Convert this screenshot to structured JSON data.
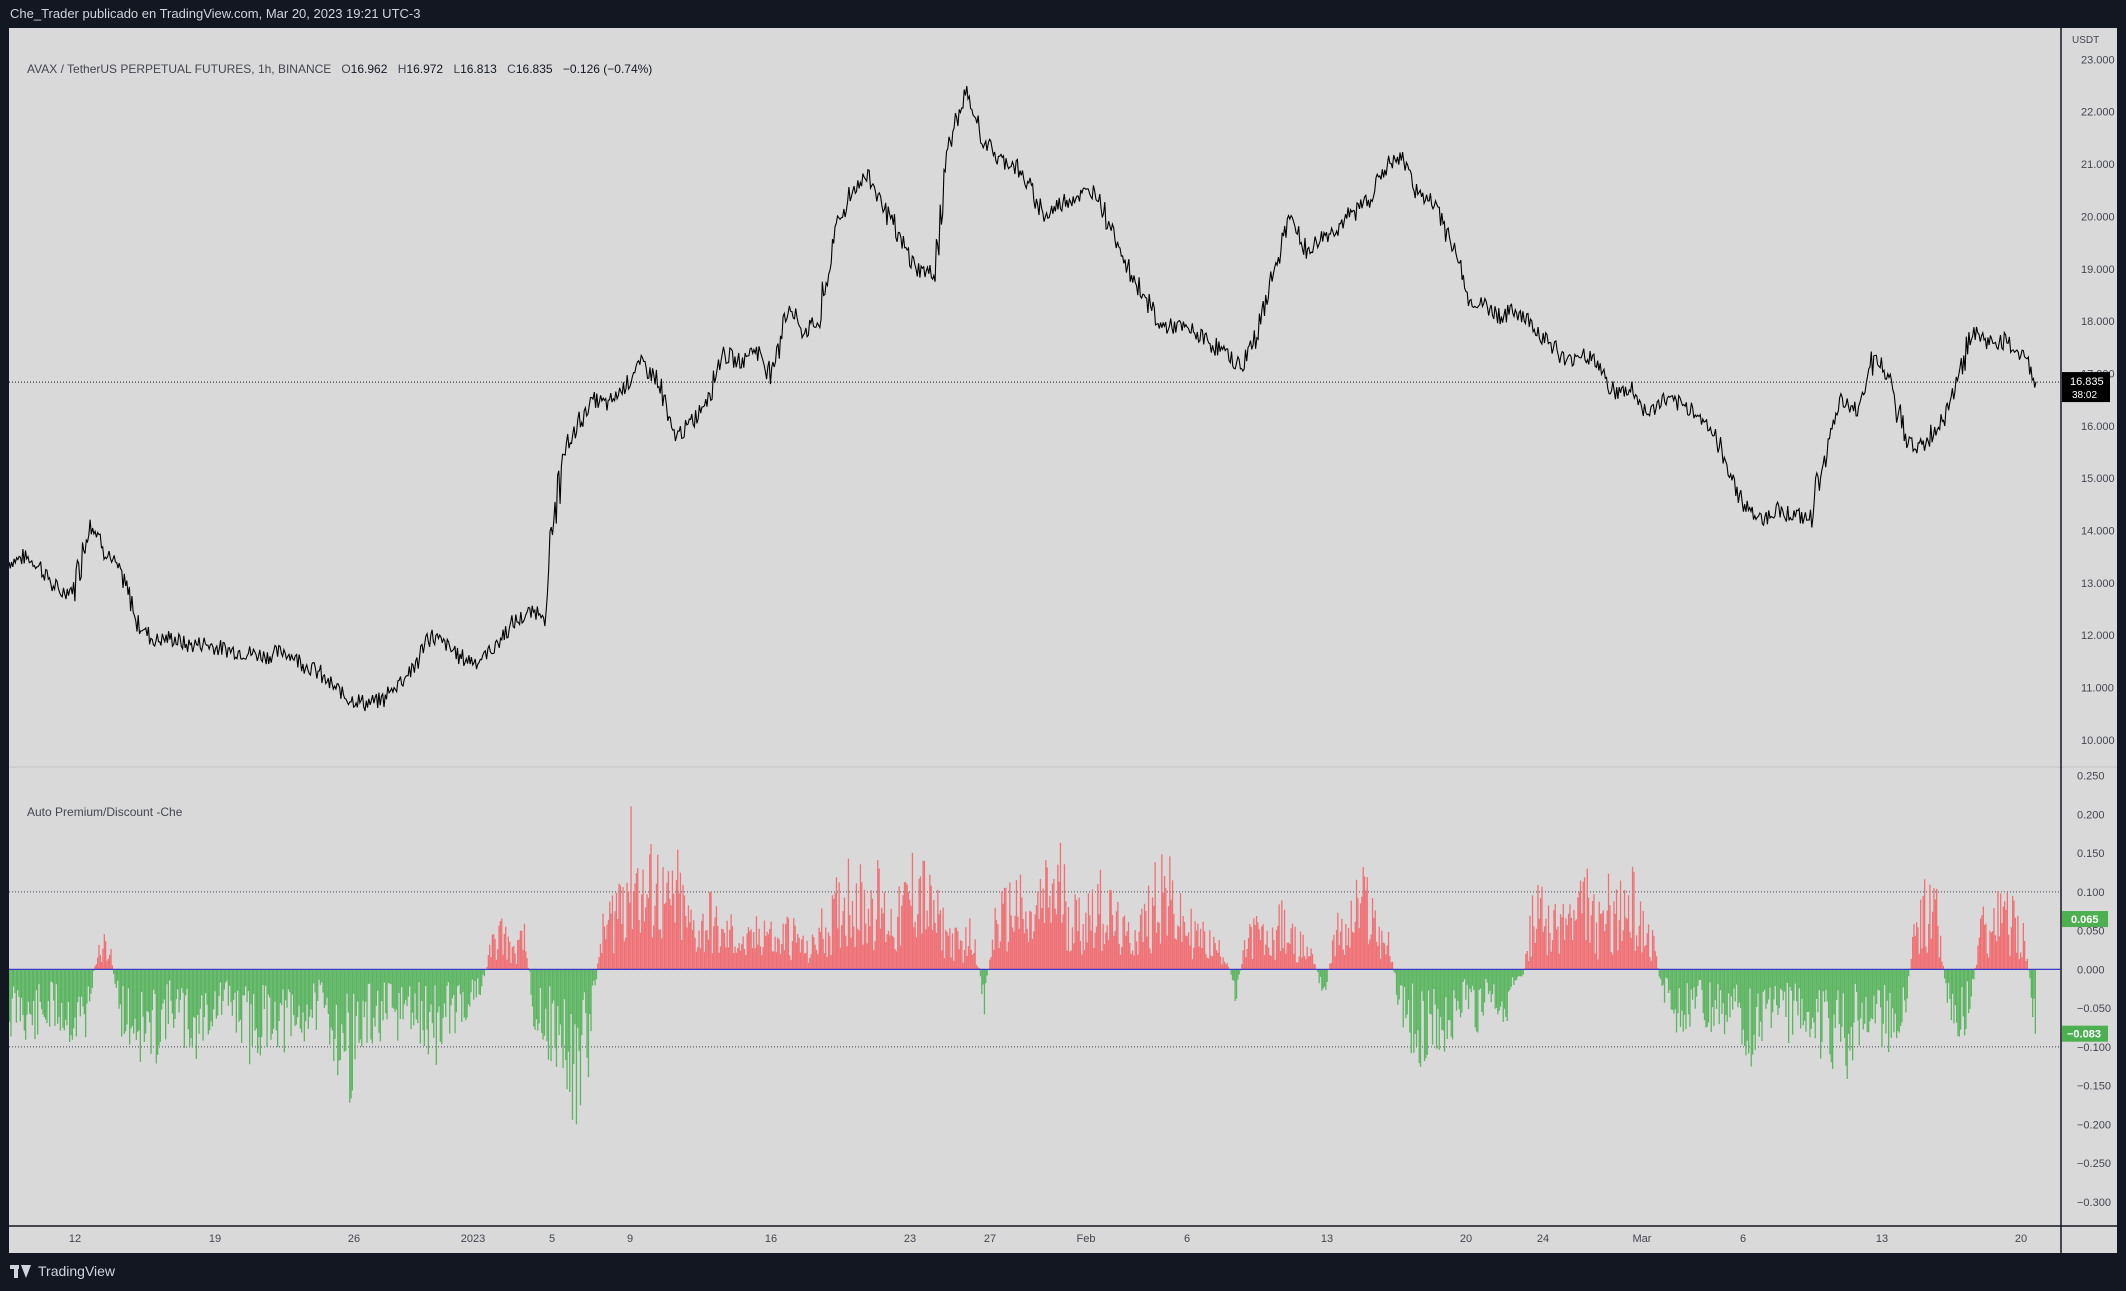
{
  "header": {
    "title": "Che_Trader publicado en TradingView.com, Mar 20, 2023 19:21 UTC-3"
  },
  "legend": {
    "symbol": "AVAX / TetherUS PERPETUAL FUTURES, 1h, BINANCE",
    "open_label": "O",
    "open": "16.962",
    "high_label": "H",
    "high": "16.972",
    "low_label": "L",
    "low": "16.813",
    "close_label": "C",
    "close": "16.835",
    "change": "−0.126 (−0.74%)"
  },
  "indicator": {
    "name": "Auto Premium/Discount -Che",
    "last_premium": "0.065",
    "last_discount": "−0.083"
  },
  "price_axis": {
    "currency": "USDT",
    "last_price": "16.835",
    "countdown": "38:02"
  },
  "footer": {
    "brand": "TradingView"
  },
  "colors": {
    "background": "#d9d9d9",
    "frame": "#131722",
    "price_line": "#000000",
    "premium": "#f07074",
    "discount": "#5cb661",
    "zero_line": "#3b3bd0",
    "premium_badge": "#4caf50",
    "discount_badge": "#4caf50"
  },
  "chart_data": [
    {
      "type": "line",
      "series": [
        {
          "values": [
            13.4,
            13.5,
            13.3,
            12.8,
            12.9,
            14.2,
            13.6,
            13.1,
            12.2,
            11.9,
            11.95,
            11.8,
            11.85,
            11.75,
            11.7,
            11.65,
            11.6,
            11.7,
            11.5,
            11.3,
            11.0,
            10.8,
            10.7,
            10.75,
            11.1,
            11.4,
            12.0,
            11.8,
            11.55,
            11.5,
            11.8,
            12.2,
            12.4,
            12.5,
            15.2,
            16.0,
            16.5,
            16.4,
            16.8,
            17.2,
            16.9,
            15.8,
            16.0,
            16.5,
            17.4,
            17.2,
            17.5,
            17.0,
            18.3,
            17.8,
            18.0,
            19.8,
            20.5,
            20.8,
            20.2,
            19.5,
            19.0,
            18.9,
            21.5,
            22.3,
            21.5,
            21.1,
            21.0,
            20.5,
            20.0,
            20.3,
            20.4,
            20.5,
            19.8,
            19.0,
            18.5,
            17.9,
            17.9,
            17.8,
            17.6,
            17.4,
            17.1,
            17.8,
            18.9,
            20.0,
            19.3,
            19.6,
            19.8,
            20.1,
            20.4,
            21.0,
            21.1,
            20.4,
            20.2,
            19.5,
            18.4,
            18.3,
            18.1,
            18.2,
            17.9,
            17.6,
            17.2,
            17.4,
            17.2,
            16.6,
            16.7,
            16.2,
            16.5,
            16.4,
            16.3,
            15.9,
            15.2,
            14.5,
            14.2,
            14.4,
            14.3,
            14.2,
            15.5,
            16.4,
            16.3,
            17.4,
            16.8,
            15.7,
            15.6,
            16.0,
            16.7,
            17.8,
            17.6,
            17.6,
            17.4,
            16.84
          ]
        }
      ],
      "x_ticks": [
        "12",
        "19",
        "26",
        "2023",
        "5",
        "9",
        "16",
        "23",
        "27",
        "Feb",
        "6",
        "13",
        "20",
        "24",
        "Mar",
        "6",
        "13",
        "20"
      ],
      "y_ticks": [
        "10.000",
        "11.000",
        "12.000",
        "13.000",
        "14.000",
        "15.000",
        "16.000",
        "17.000",
        "18.000",
        "19.000",
        "20.000",
        "21.000",
        "22.000",
        "23.000"
      ],
      "ylim": [
        9.5,
        23.6
      ]
    },
    {
      "type": "bar",
      "series": [
        {
          "values": [
            -0.06,
            -0.05,
            -0.07,
            -0.06,
            -0.05,
            -0.06,
            -0.07,
            -0.06,
            0.02,
            0.04,
            -0.05,
            -0.07,
            -0.08,
            -0.09,
            -0.06,
            -0.05,
            -0.07,
            -0.08,
            -0.06,
            -0.05,
            -0.04,
            -0.06,
            -0.08,
            -0.07,
            -0.06,
            -0.07,
            -0.08,
            -0.06,
            -0.05,
            -0.06,
            -0.09,
            -0.11,
            -0.08,
            -0.07,
            -0.06,
            -0.07,
            -0.05,
            -0.06,
            -0.07,
            -0.08,
            -0.06,
            -0.05,
            -0.04,
            -0.03,
            0.03,
            0.05,
            0.02,
            0.04,
            -0.06,
            -0.07,
            -0.09,
            -0.12,
            -0.14,
            -0.08,
            0.04,
            0.07,
            0.11,
            0.14,
            0.09,
            0.12,
            0.08,
            0.1,
            0.06,
            0.05,
            0.07,
            0.04,
            0.05,
            0.03,
            0.04,
            0.06,
            0.03,
            0.05,
            0.04,
            0.02,
            0.05,
            0.06,
            0.09,
            0.11,
            0.08,
            0.1,
            0.07,
            0.06,
            0.09,
            0.12,
            0.08,
            0.06,
            0.04,
            0.03,
            0.05,
            -0.04,
            0.06,
            0.07,
            0.09,
            0.05,
            0.08,
            0.1,
            0.11,
            0.07,
            0.06,
            0.09,
            0.08,
            0.06,
            0.04,
            0.05,
            0.07,
            0.12,
            0.09,
            0.06,
            0.05,
            0.04,
            0.03,
            0.02,
            -0.03,
            0.04,
            0.05,
            0.03,
            0.06,
            0.04,
            0.03,
            0.02,
            -0.04,
            0.05,
            0.04,
            0.08,
            0.09,
            0.05,
            0.03,
            -0.05,
            -0.07,
            -0.09,
            -0.06,
            -0.08,
            -0.05,
            -0.04,
            -0.06,
            -0.03,
            -0.05,
            -0.04,
            -0.03,
            0.06,
            0.08,
            0.05,
            0.07,
            0.06,
            0.09,
            0.05,
            0.08,
            0.07,
            0.09,
            0.06,
            0.04,
            -0.03,
            -0.05,
            -0.06,
            -0.04,
            -0.07,
            -0.06,
            -0.05,
            -0.07,
            -0.08,
            -0.06,
            -0.05,
            -0.07,
            -0.06,
            -0.05,
            -0.07,
            -0.08,
            -0.1,
            -0.09,
            -0.06,
            -0.05,
            -0.08,
            -0.07,
            -0.06,
            0.05,
            0.08,
            0.07,
            -0.04,
            -0.06,
            -0.05,
            0.05,
            0.06,
            0.07,
            0.06,
            0.04,
            -0.065
          ]
        }
      ],
      "y_ticks": [
        "−0.300",
        "−0.250",
        "−0.200",
        "−0.150",
        "−0.100",
        "−0.050",
        "0.000",
        "0.050",
        "0.100",
        "0.150",
        "0.200",
        "0.250"
      ],
      "ylim": [
        -0.33,
        0.26
      ],
      "thresholds": [
        0.1,
        -0.1
      ]
    }
  ]
}
